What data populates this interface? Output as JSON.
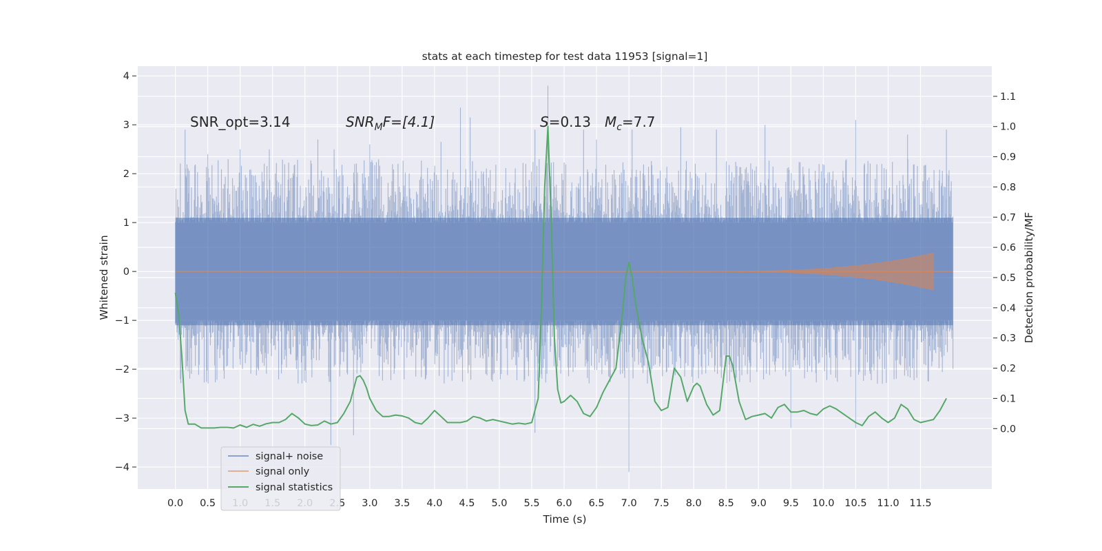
{
  "chart_data": {
    "type": "line",
    "title": "stats at each timestep for test data 11953 [signal=1]",
    "xlabel": "Time (s)",
    "ylabel_left": "Whitened strain",
    "ylabel_right": "Detection probability/MF",
    "xlim": [
      -0.58,
      12.6
    ],
    "ylim_left": [
      -4.45,
      4.2
    ],
    "ylim_right": [
      -0.2,
      1.2
    ],
    "x_ticks": [
      "0.0",
      "0.5",
      "1.0",
      "1.5",
      "2.0",
      "2.5",
      "3.0",
      "3.5",
      "4.0",
      "4.5",
      "5.0",
      "5.5",
      "6.0",
      "6.5",
      "7.0",
      "7.5",
      "8.0",
      "8.5",
      "9.0",
      "9.5",
      "10.0",
      "10.5",
      "11.0",
      "11.5"
    ],
    "y_ticks_left": [
      "4",
      "3",
      "2",
      "1",
      "0",
      "−1",
      "−2",
      "−3",
      "−4"
    ],
    "y_ticks_right": [
      "1.1",
      "1.0",
      "0.9",
      "0.8",
      "0.7",
      "0.6",
      "0.5",
      "0.4",
      "0.3",
      "0.2",
      "0.1",
      "0.0"
    ],
    "grid": true,
    "legend_position": "lower-left",
    "annotations": {
      "snr_opt": "SNR_opt=3.14",
      "snr_mf_italic": "SNR",
      "snr_mf_sub": "M",
      "snr_mf_tail": "F=[4.1]",
      "s_italic": "S",
      "s_value": "=0.13",
      "mc_italic": "M",
      "mc_sub": "c",
      "mc_value": "=7.7"
    },
    "series": [
      {
        "name": "signal+ noise",
        "color": "#4c72b0",
        "axis": "left",
        "envelope": {
          "x": [
            0.0,
            12.0
          ],
          "typical_high": 1.7,
          "typical_low": -1.7,
          "peaks": [
            [
              0.15,
              2.9
            ],
            [
              0.5,
              2.4
            ],
            [
              1.0,
              2.5
            ],
            [
              1.45,
              2.5
            ],
            [
              2.2,
              2.7
            ],
            [
              2.4,
              -3.55
            ],
            [
              2.45,
              2.5
            ],
            [
              2.75,
              -3.35
            ],
            [
              3.0,
              2.6
            ],
            [
              4.1,
              2.65
            ],
            [
              4.4,
              3.35
            ],
            [
              4.55,
              3.15
            ],
            [
              5.55,
              2.9
            ],
            [
              5.55,
              -3.3
            ],
            [
              5.75,
              3.8
            ],
            [
              6.3,
              2.9
            ],
            [
              6.5,
              2.7
            ],
            [
              7.0,
              -4.1
            ],
            [
              7.05,
              2.9
            ],
            [
              7.8,
              2.95
            ],
            [
              8.35,
              2.9
            ],
            [
              9.1,
              3.0
            ],
            [
              9.5,
              -3.2
            ],
            [
              10.5,
              3.1
            ],
            [
              10.5,
              -3.2
            ],
            [
              11.3,
              2.8
            ],
            [
              11.9,
              2.9
            ]
          ]
        }
      },
      {
        "name": "signal only",
        "color": "#dd8452",
        "axis": "left",
        "chirp": {
          "x_start": 8.0,
          "x_end": 11.7,
          "amplitude_end": 0.38
        }
      },
      {
        "name": "signal statistics",
        "color": "#55a868",
        "axis": "right",
        "x": [
          0.0,
          0.05,
          0.1,
          0.15,
          0.2,
          0.3,
          0.4,
          0.5,
          0.6,
          0.7,
          0.8,
          0.9,
          1.0,
          1.1,
          1.2,
          1.3,
          1.4,
          1.5,
          1.6,
          1.7,
          1.8,
          1.9,
          2.0,
          2.1,
          2.2,
          2.3,
          2.4,
          2.5,
          2.6,
          2.7,
          2.8,
          2.85,
          2.9,
          2.95,
          3.0,
          3.1,
          3.2,
          3.3,
          3.4,
          3.5,
          3.6,
          3.7,
          3.8,
          3.9,
          4.0,
          4.1,
          4.2,
          4.3,
          4.4,
          4.5,
          4.6,
          4.7,
          4.8,
          4.9,
          5.0,
          5.1,
          5.2,
          5.3,
          5.4,
          5.5,
          5.6,
          5.65,
          5.7,
          5.75,
          5.8,
          5.85,
          5.9,
          5.95,
          6.0,
          6.05,
          6.1,
          6.2,
          6.3,
          6.4,
          6.5,
          6.6,
          6.7,
          6.8,
          6.9,
          6.95,
          7.0,
          7.05,
          7.1,
          7.2,
          7.3,
          7.4,
          7.5,
          7.6,
          7.7,
          7.8,
          7.9,
          8.0,
          8.05,
          8.1,
          8.2,
          8.3,
          8.4,
          8.5,
          8.55,
          8.6,
          8.7,
          8.8,
          8.9,
          9.0,
          9.1,
          9.2,
          9.3,
          9.4,
          9.5,
          9.6,
          9.7,
          9.8,
          9.9,
          10.0,
          10.1,
          10.2,
          10.3,
          10.4,
          10.5,
          10.6,
          10.7,
          10.8,
          10.9,
          11.0,
          11.1,
          11.2,
          11.3,
          11.4,
          11.5,
          11.6,
          11.7,
          11.8,
          11.9
        ],
        "values": [
          0.45,
          0.38,
          0.24,
          0.06,
          0.015,
          0.015,
          0.002,
          0.002,
          0.002,
          0.004,
          0.004,
          0.002,
          0.012,
          0.004,
          0.014,
          0.008,
          0.016,
          0.02,
          0.02,
          0.03,
          0.05,
          0.035,
          0.015,
          0.01,
          0.012,
          0.025,
          0.015,
          0.02,
          0.05,
          0.09,
          0.17,
          0.175,
          0.16,
          0.135,
          0.1,
          0.06,
          0.04,
          0.04,
          0.045,
          0.042,
          0.035,
          0.02,
          0.015,
          0.035,
          0.06,
          0.04,
          0.02,
          0.02,
          0.02,
          0.025,
          0.04,
          0.035,
          0.025,
          0.03,
          0.025,
          0.02,
          0.015,
          0.018,
          0.015,
          0.02,
          0.1,
          0.4,
          0.8,
          1.0,
          0.7,
          0.3,
          0.13,
          0.085,
          0.09,
          0.1,
          0.11,
          0.09,
          0.05,
          0.04,
          0.07,
          0.12,
          0.16,
          0.2,
          0.38,
          0.5,
          0.55,
          0.5,
          0.42,
          0.3,
          0.22,
          0.09,
          0.06,
          0.07,
          0.2,
          0.17,
          0.09,
          0.14,
          0.15,
          0.14,
          0.08,
          0.045,
          0.06,
          0.24,
          0.24,
          0.21,
          0.09,
          0.03,
          0.04,
          0.045,
          0.05,
          0.035,
          0.07,
          0.08,
          0.055,
          0.055,
          0.06,
          0.05,
          0.045,
          0.065,
          0.075,
          0.065,
          0.05,
          0.035,
          0.02,
          0.01,
          0.04,
          0.055,
          0.035,
          0.02,
          0.035,
          0.08,
          0.065,
          0.03,
          0.02,
          0.025,
          0.03,
          0.06,
          0.1
        ]
      }
    ]
  }
}
